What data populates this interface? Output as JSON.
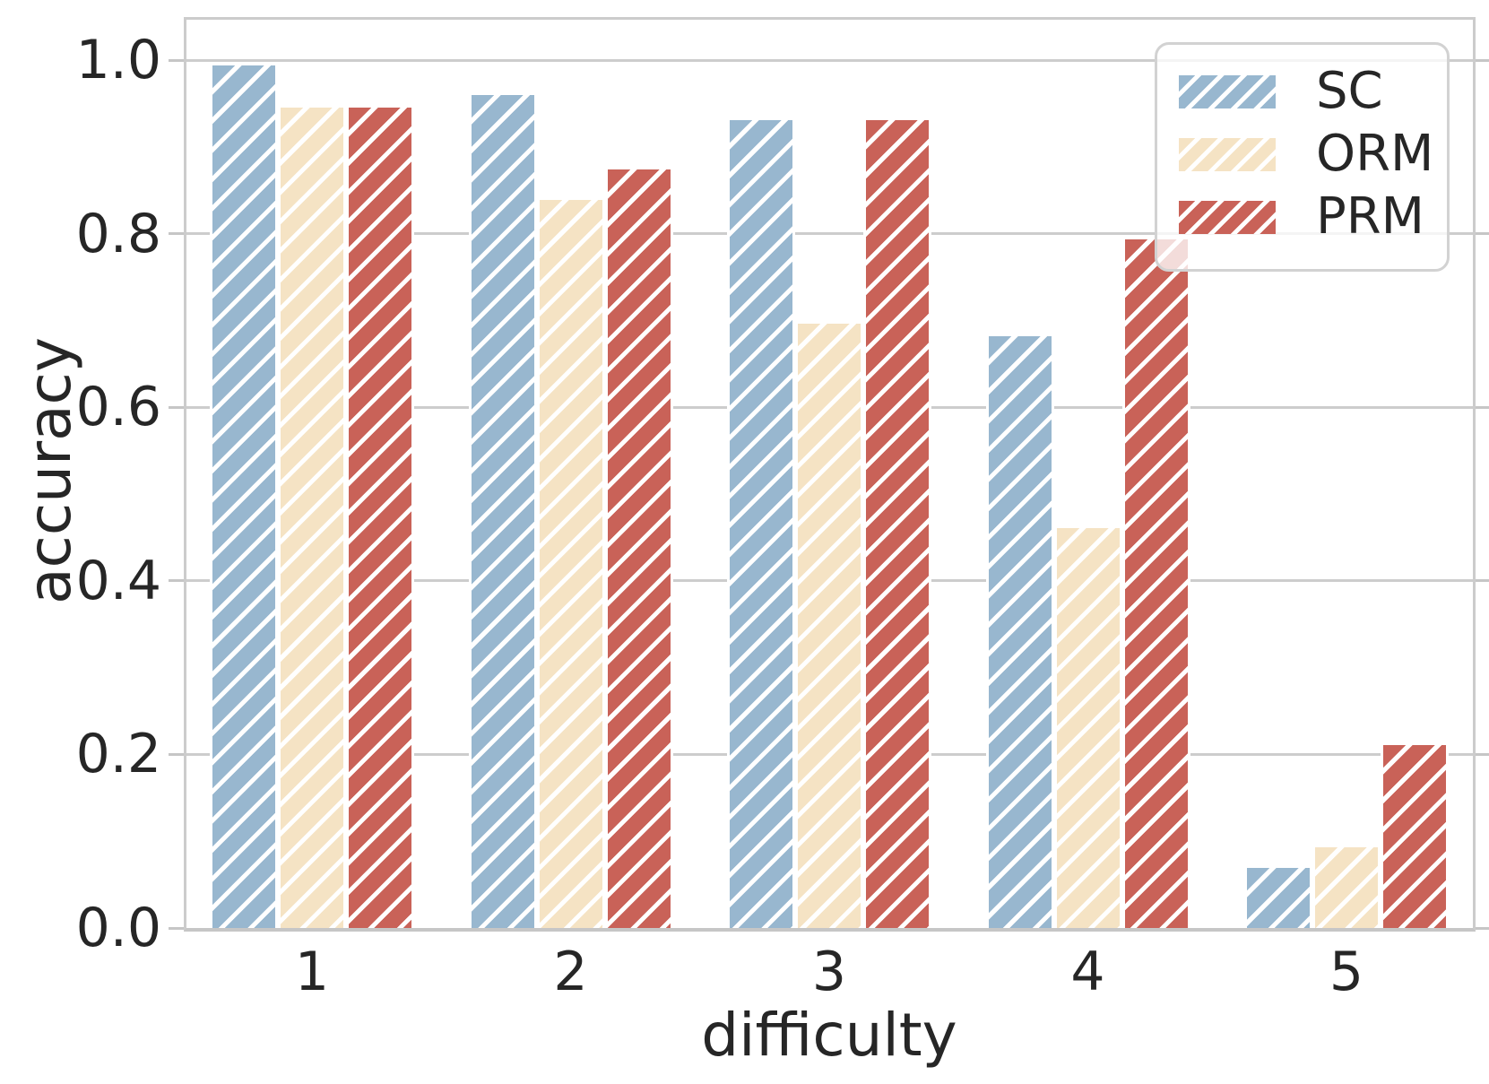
{
  "chart_data": {
    "type": "bar",
    "title": "",
    "xlabel": "difficulty",
    "ylabel": "accuracy",
    "categories": [
      "1",
      "2",
      "3",
      "4",
      "5"
    ],
    "series": [
      {
        "name": "SC",
        "color": "#98b7cf",
        "values": [
          0.997,
          0.963,
          0.934,
          0.685,
          0.072
        ]
      },
      {
        "name": "ORM",
        "color": "#f5e3c4",
        "values": [
          0.948,
          0.842,
          0.699,
          0.464,
          0.096
        ]
      },
      {
        "name": "PRM",
        "color": "#c96258",
        "values": [
          0.948,
          0.877,
          0.934,
          0.797,
          0.214
        ]
      }
    ],
    "ylim": [
      0.0,
      1.047
    ],
    "yticks": [
      {
        "value": 0.0,
        "label": "0.0"
      },
      {
        "value": 0.2,
        "label": "0.2"
      },
      {
        "value": 0.4,
        "label": "0.4"
      },
      {
        "value": 0.6,
        "label": "0.6"
      },
      {
        "value": 0.8,
        "label": "0.8"
      },
      {
        "value": 1.0,
        "label": "1.0"
      }
    ],
    "grid": "horizontal",
    "legend_position": "upper right",
    "hatch": "//",
    "hatch_color": "#ffffff"
  }
}
